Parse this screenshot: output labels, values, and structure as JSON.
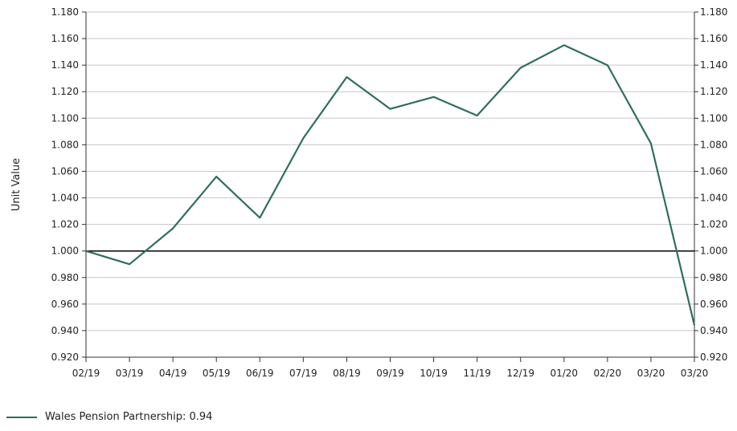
{
  "chart_data": {
    "type": "line",
    "ylabel": "Unit Value",
    "categories": [
      "02/19",
      "03/19",
      "04/19",
      "05/19",
      "06/19",
      "07/19",
      "08/19",
      "09/19",
      "10/19",
      "11/19",
      "12/19",
      "01/20",
      "02/20",
      "03/20",
      "03/20"
    ],
    "series": [
      {
        "name": "Wales Pension Partnership",
        "color": "#2f6e5a",
        "values": [
          1.0,
          0.99,
          1.017,
          1.056,
          1.025,
          1.085,
          1.131,
          1.107,
          1.116,
          1.102,
          1.138,
          1.155,
          1.14,
          1.081,
          0.944
        ]
      }
    ],
    "ylim": [
      0.92,
      1.18
    ],
    "yticks": [
      "0.920",
      "0.940",
      "0.960",
      "0.980",
      "1.000",
      "1.020",
      "1.040",
      "1.060",
      "1.080",
      "1.100",
      "1.120",
      "1.140",
      "1.160",
      "1.180"
    ],
    "reference_line": 1.0,
    "grid": true,
    "legend_position": "bottom-left",
    "legend_text": "Wales Pension Partnership: 0.94"
  }
}
